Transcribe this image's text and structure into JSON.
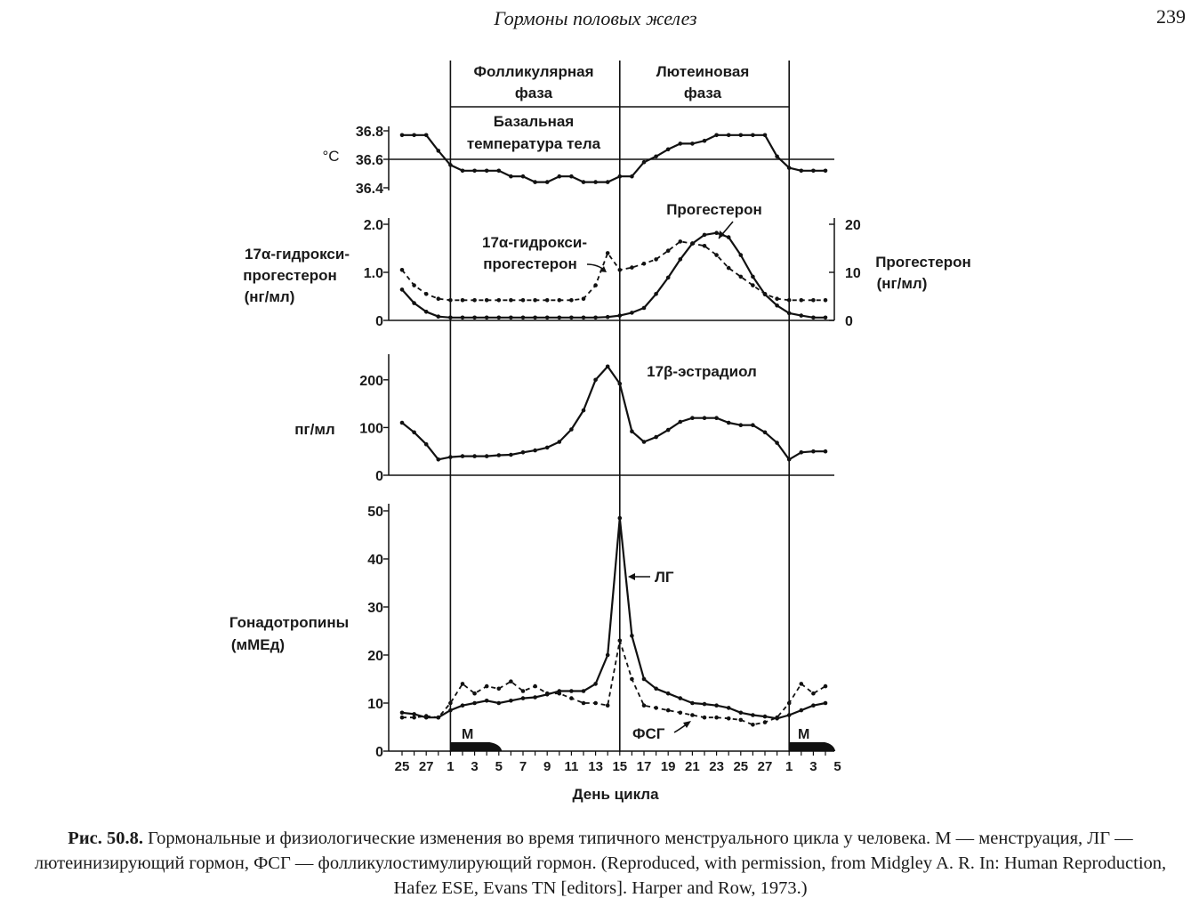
{
  "header": {
    "running_title": "Гормоны половых желез",
    "page_number": "239"
  },
  "caption": {
    "label": "Рис. 50.8.",
    "text": "Гормональные и физиологические изменения во время типичного менструального цикла у человека. М — менструация, ЛГ — лютеинизирующий гормон, ФСГ — фолликулостимулирующий гормон. (Reproduced, with permission, from Midgley A. R. In: Human Reproduction, Hafez ESE, Evans TN [editors]. Harper and Row, 1973.)"
  },
  "phases": {
    "follicular": [
      "Фолликулярная",
      "фаза"
    ],
    "luteal": [
      "Лютеиновая",
      "фаза"
    ]
  },
  "chart_data": [
    {
      "id": "temperature",
      "type": "line",
      "title": [
        "Базальная",
        "температура тела"
      ],
      "ylabel": "°C",
      "yticks": [
        "36.8",
        "36.6",
        "36.4"
      ],
      "ylim": [
        36.4,
        36.8
      ],
      "reference_line": 36.6,
      "x_days": [
        25,
        26,
        27,
        28,
        1,
        2,
        3,
        4,
        5,
        6,
        7,
        8,
        9,
        10,
        11,
        12,
        13,
        14,
        15,
        16,
        17,
        18,
        19,
        20,
        21,
        22,
        23,
        24,
        25,
        26,
        27,
        28,
        1,
        2,
        3,
        4
      ],
      "values": [
        36.77,
        36.77,
        36.77,
        36.66,
        36.56,
        36.52,
        36.52,
        36.52,
        36.52,
        36.48,
        36.48,
        36.44,
        36.44,
        36.48,
        36.48,
        36.44,
        36.44,
        36.44,
        36.48,
        36.48,
        36.58,
        36.62,
        36.67,
        36.71,
        36.71,
        36.73,
        36.77,
        36.77,
        36.77,
        36.77,
        36.77,
        36.62,
        36.54,
        36.52,
        36.52,
        36.52
      ]
    },
    {
      "id": "progesterone",
      "type": "line",
      "y_left_label": [
        "17α-гидрокси-",
        "прогестерон",
        "(нг/мл)"
      ],
      "y_left_ticks": [
        "2.0",
        "1.0",
        "0"
      ],
      "y_left_lim": [
        0,
        2.0
      ],
      "y_right_label": [
        "Прогестерон",
        "(нг/мл)"
      ],
      "y_right_ticks": [
        "20",
        "10",
        "0"
      ],
      "y_right_lim": [
        0,
        20
      ],
      "x_days": [
        25,
        26,
        27,
        28,
        1,
        2,
        3,
        4,
        5,
        6,
        7,
        8,
        9,
        10,
        11,
        12,
        13,
        14,
        15,
        16,
        17,
        18,
        19,
        20,
        21,
        22,
        23,
        24,
        25,
        26,
        27,
        28,
        1,
        2,
        3,
        4
      ],
      "series": [
        {
          "name": "Прогестерон",
          "style": "solid",
          "axis": "right",
          "values": [
            6.4,
            3.6,
            1.8,
            0.8,
            0.6,
            0.6,
            0.6,
            0.6,
            0.6,
            0.6,
            0.6,
            0.6,
            0.6,
            0.6,
            0.6,
            0.6,
            0.6,
            0.7,
            1.0,
            1.6,
            2.6,
            5.5,
            8.9,
            12.7,
            16.0,
            17.8,
            18.2,
            17.3,
            13.6,
            9.1,
            5.4,
            3.1,
            1.5,
            1.0,
            0.6,
            0.6
          ]
        },
        {
          "name": "17α-гидрокси-прогестерон",
          "style": "dashed",
          "axis": "left",
          "values": [
            1.05,
            0.73,
            0.55,
            0.45,
            0.42,
            0.42,
            0.42,
            0.42,
            0.42,
            0.42,
            0.42,
            0.42,
            0.42,
            0.42,
            0.42,
            0.45,
            0.73,
            1.4,
            1.05,
            1.1,
            1.18,
            1.27,
            1.45,
            1.64,
            1.6,
            1.55,
            1.36,
            1.09,
            0.91,
            0.73,
            0.55,
            0.45,
            0.42,
            0.42,
            0.42,
            0.42
          ]
        }
      ]
    },
    {
      "id": "estradiol",
      "type": "line",
      "title": "17β-эстрадиол",
      "ylabel": "пг/мл",
      "yticks": [
        "200",
        "100",
        "0"
      ],
      "ylim": [
        0,
        250
      ],
      "x_days": [
        25,
        26,
        27,
        28,
        1,
        2,
        3,
        4,
        5,
        6,
        7,
        8,
        9,
        10,
        11,
        12,
        13,
        14,
        15,
        16,
        17,
        18,
        19,
        20,
        21,
        22,
        23,
        24,
        25,
        26,
        27,
        28,
        1,
        2,
        3,
        4
      ],
      "values": [
        110,
        90,
        65,
        33,
        38,
        40,
        40,
        40,
        42,
        43,
        48,
        52,
        58,
        70,
        96,
        136,
        200,
        228,
        192,
        92,
        70,
        80,
        95,
        112,
        120,
        120,
        120,
        110,
        105,
        105,
        90,
        68,
        33,
        48,
        50,
        50
      ]
    },
    {
      "id": "gonadotropins",
      "type": "line",
      "ylabel": [
        "Гонадотропины",
        "(мМЕд)"
      ],
      "yticks": [
        "50",
        "40",
        "30",
        "20",
        "10",
        "0"
      ],
      "ylim": [
        0,
        50
      ],
      "xlabel": "День цикла",
      "xticks": [
        "25",
        "27",
        "1",
        "3",
        "5",
        "7",
        "9",
        "11",
        "13",
        "15",
        "17",
        "19",
        "21",
        "23",
        "25",
        "27",
        "1",
        "3",
        "5"
      ],
      "x_days": [
        25,
        26,
        27,
        28,
        1,
        2,
        3,
        4,
        5,
        6,
        7,
        8,
        9,
        10,
        11,
        12,
        13,
        14,
        15,
        16,
        17,
        18,
        19,
        20,
        21,
        22,
        23,
        24,
        25,
        26,
        27,
        28,
        1,
        2,
        3,
        4
      ],
      "series": [
        {
          "name": "ЛГ",
          "style": "solid",
          "values": [
            8.0,
            7.7,
            7.0,
            7.0,
            8.5,
            9.5,
            10.0,
            10.5,
            10.0,
            10.5,
            11.0,
            11.2,
            11.8,
            12.5,
            12.5,
            12.5,
            14.0,
            20.0,
            48.5,
            24.0,
            15.0,
            13.0,
            12.0,
            11.0,
            10.0,
            9.8,
            9.5,
            9.0,
            8.0,
            7.5,
            7.2,
            6.8,
            7.5,
            8.5,
            9.5,
            10.0
          ]
        },
        {
          "name": "ФСГ",
          "style": "dashed",
          "values": [
            7.0,
            7.0,
            7.3,
            7.0,
            10.0,
            14.0,
            12.0,
            13.5,
            13.0,
            14.5,
            12.5,
            13.5,
            12.0,
            12.0,
            11.0,
            10.0,
            10.0,
            9.5,
            23.0,
            15.0,
            9.5,
            9.0,
            8.5,
            8.0,
            7.5,
            7.0,
            7.0,
            6.8,
            6.5,
            5.5,
            6.0,
            7.0,
            10.0,
            14.0,
            12.0,
            13.5
          ]
        }
      ],
      "menstruation_label": "М"
    }
  ]
}
